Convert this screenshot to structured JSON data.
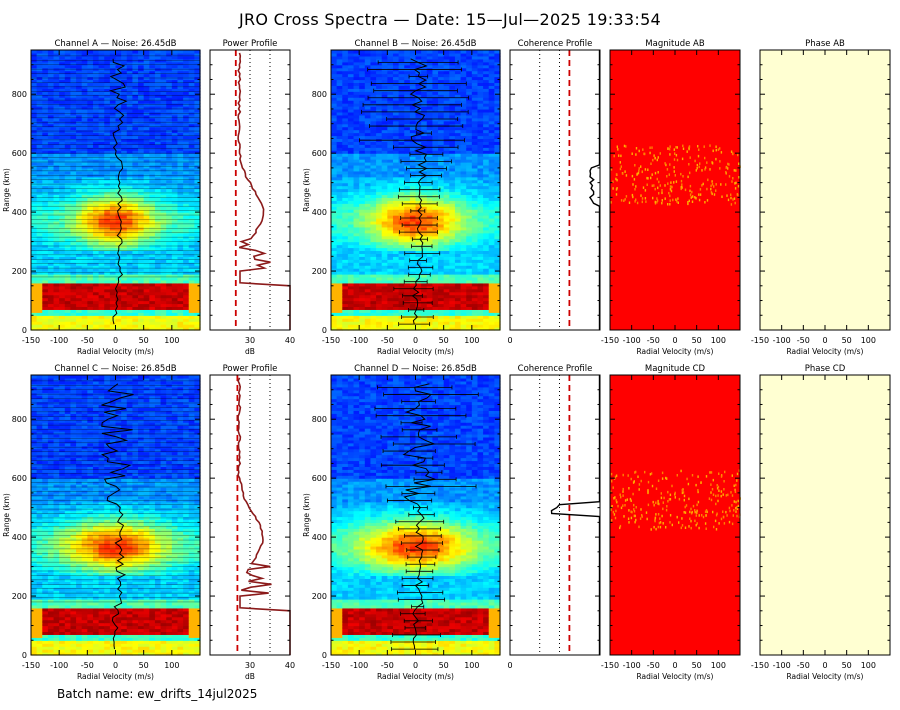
{
  "page": {
    "title": "JRO Cross Spectra — Date: 15—Jul—2025 19:33:54",
    "batch_label": "Batch name: ew_drifts_14jul2025"
  },
  "colors": {
    "bg": "#ffffff",
    "axis": "#000000",
    "profile": "#8b1a1a",
    "noise_line": "#cc0000",
    "phase_fill": "#ffffd2"
  },
  "chart_data": [
    {
      "type": "heatmap",
      "title": "Channel A — Noise: 26.45dB",
      "xlabel": "Radial Velocity (m/s)",
      "ylabel": "Range (km)",
      "xlim": [
        -150,
        150
      ],
      "ylim": [
        0,
        950
      ],
      "xticks": [
        "-150",
        "-100",
        "-50",
        "0",
        "50",
        "100"
      ],
      "yticks": [
        "0",
        "200",
        "400",
        "600",
        "800"
      ],
      "overlay": "doppler drift profile"
    },
    {
      "type": "line",
      "title": "Power Profile",
      "xlabel": "dB",
      "xlim": [
        20,
        40
      ],
      "ylim": [
        0,
        950
      ],
      "xticks": [
        "30",
        "40"
      ],
      "noise_level_db": 26.45
    },
    {
      "type": "heatmap",
      "title": "Channel B — Noise: 26.45dB",
      "xlabel": "Radial Velocity (m/s)",
      "ylabel": "Range (km)",
      "xlim": [
        -150,
        150
      ],
      "ylim": [
        0,
        950
      ],
      "xticks": [
        "-150",
        "-100",
        "-50",
        "0",
        "50",
        "100"
      ],
      "yticks": [
        "0",
        "200",
        "400",
        "600",
        "800"
      ],
      "overlay": "doppler drift profile with error bars"
    },
    {
      "type": "line",
      "title": "Coherence Profile",
      "xlim": [
        0,
        1
      ],
      "ylim": [
        0,
        950
      ],
      "xticks": [
        "0"
      ]
    },
    {
      "type": "heatmap",
      "title": "Magnitude AB",
      "xlabel": "Radial Velocity (m/s)",
      "xlim": [
        -150,
        150
      ],
      "ylim": [
        0,
        950
      ],
      "xticks": [
        "-150",
        "-100",
        "-50",
        "0",
        "50",
        "100"
      ]
    },
    {
      "type": "heatmap",
      "title": "Phase AB",
      "xlabel": "Radial Velocity (m/s)",
      "xlim": [
        -150,
        150
      ],
      "ylim": [
        0,
        950
      ],
      "xticks": [
        "-150",
        "-100",
        "-50",
        "0",
        "50",
        "100"
      ]
    },
    {
      "type": "heatmap",
      "title": "Channel C — Noise: 26.85dB",
      "xlabel": "Radial Velocity (m/s)",
      "ylabel": "Range (km)",
      "xlim": [
        -150,
        150
      ],
      "ylim": [
        0,
        950
      ],
      "xticks": [
        "-150",
        "-100",
        "-50",
        "0",
        "50",
        "100"
      ],
      "yticks": [
        "0",
        "200",
        "400",
        "600",
        "800"
      ],
      "overlay": "doppler drift profile"
    },
    {
      "type": "line",
      "title": "Power Profile",
      "xlabel": "dB",
      "xlim": [
        20,
        40
      ],
      "ylim": [
        0,
        950
      ],
      "xticks": [
        "30",
        "40"
      ],
      "noise_level_db": 26.85
    },
    {
      "type": "heatmap",
      "title": "Channel D — Noise: 26.85dB",
      "xlabel": "Radial Velocity (m/s)",
      "ylabel": "Range (km)",
      "xlim": [
        -150,
        150
      ],
      "ylim": [
        0,
        950
      ],
      "xticks": [
        "-150",
        "-100",
        "-50",
        "0",
        "50",
        "100"
      ],
      "yticks": [
        "0",
        "200",
        "400",
        "600",
        "800"
      ],
      "overlay": "doppler drift profile with error bars"
    },
    {
      "type": "line",
      "title": "Coherence Profile",
      "xlim": [
        0,
        1
      ],
      "ylim": [
        0,
        950
      ],
      "xticks": [
        "0"
      ]
    },
    {
      "type": "heatmap",
      "title": "Magnitude CD",
      "xlabel": "Radial Velocity (m/s)",
      "xlim": [
        -150,
        150
      ],
      "ylim": [
        0,
        950
      ],
      "xticks": [
        "-150",
        "-100",
        "-50",
        "0",
        "50",
        "100"
      ]
    },
    {
      "type": "heatmap",
      "title": "Phase CD",
      "xlabel": "Radial Velocity (m/s)",
      "xlim": [
        -150,
        150
      ],
      "ylim": [
        0,
        950
      ],
      "xticks": [
        "-150",
        "-100",
        "-50",
        "0",
        "50",
        "100"
      ]
    }
  ]
}
